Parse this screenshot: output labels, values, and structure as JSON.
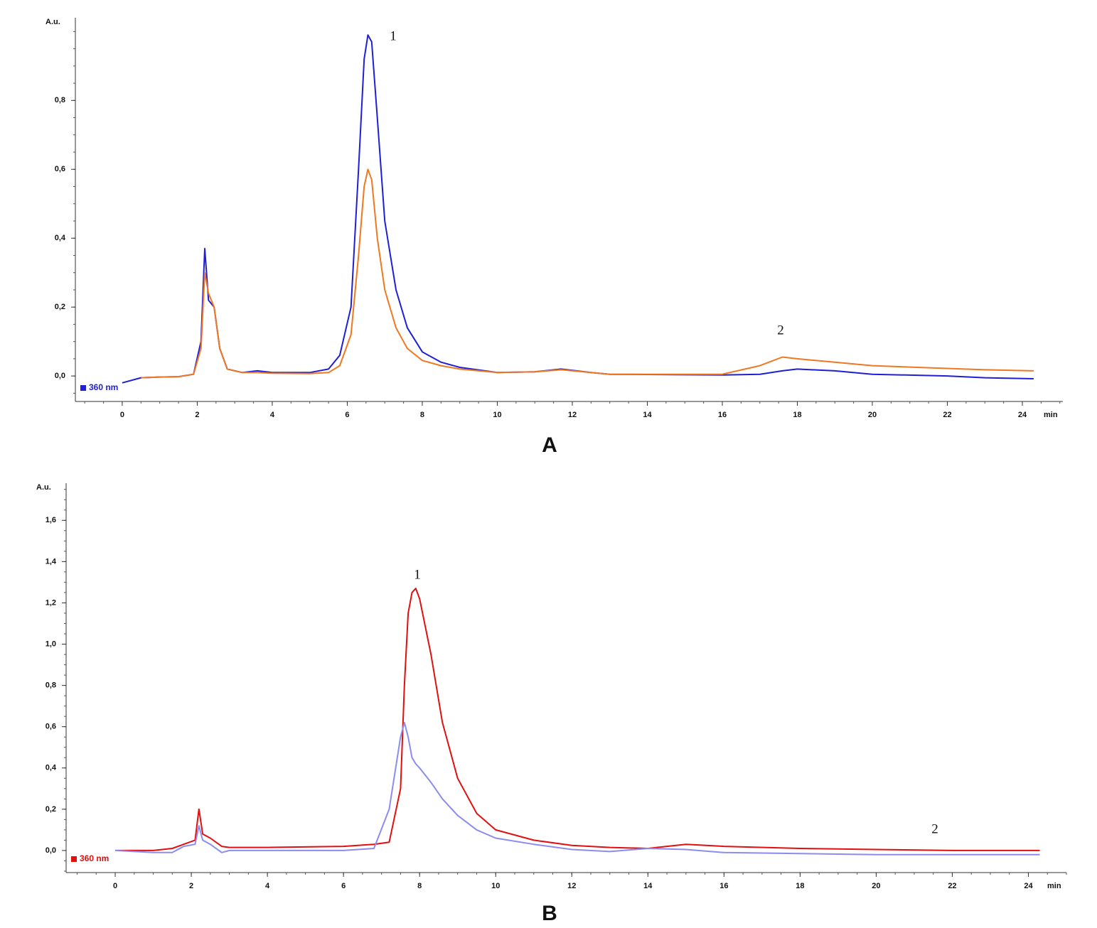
{
  "chart_data": [
    {
      "type": "line",
      "panel_label": "A",
      "y_label": "A.u.",
      "x_label": "min",
      "xlim": [
        -1.25,
        25.08
      ],
      "ylim": [
        -0.074,
        1.04
      ],
      "xticks": [
        0,
        2,
        4,
        6,
        8,
        10,
        12,
        14,
        16,
        18,
        20,
        22,
        24
      ],
      "yticks": [
        {
          "value": 0,
          "label": "0,0"
        },
        {
          "value": 0.2,
          "label": "0,2"
        },
        {
          "value": 0.4,
          "label": "0,4"
        },
        {
          "value": 0.6,
          "label": "0,6"
        },
        {
          "value": 0.8,
          "label": "0,8"
        }
      ],
      "legend": "bottom-left",
      "annotations": [
        "1",
        "2"
      ],
      "x": [
        0,
        0.5,
        1,
        1.5,
        1.9,
        2.1,
        2.2,
        2.3,
        2.45,
        2.6,
        2.8,
        3.2,
        3.6,
        4,
        5,
        5.5,
        5.8,
        6.1,
        6.3,
        6.45,
        6.55,
        6.65,
        6.8,
        7,
        7.3,
        7.6,
        8,
        8.5,
        9,
        10,
        11,
        11.7,
        12.5,
        13,
        16,
        17,
        17.6,
        18,
        19,
        20,
        22,
        23,
        24.3
      ],
      "series": [
        {
          "name": "360 nm",
          "color": "#1f1fd6",
          "values": [
            -0.02,
            -0.005,
            -0.003,
            -0.002,
            0.005,
            0.1,
            0.37,
            0.22,
            0.2,
            0.08,
            0.02,
            0.01,
            0.015,
            0.01,
            0.01,
            0.02,
            0.06,
            0.2,
            0.6,
            0.92,
            0.99,
            0.97,
            0.75,
            0.45,
            0.25,
            0.14,
            0.07,
            0.04,
            0.025,
            0.01,
            0.012,
            0.02,
            0.01,
            0.005,
            0.003,
            0.005,
            0.015,
            0.02,
            0.015,
            0.005,
            0.0,
            -0.005,
            -0.008
          ]
        },
        {
          "color": "#f07820",
          "values": [
            null,
            -0.005,
            -0.003,
            -0.002,
            0.005,
            0.08,
            0.3,
            0.24,
            0.2,
            0.08,
            0.02,
            0.01,
            0.01,
            0.008,
            0.007,
            0.01,
            0.03,
            0.12,
            0.35,
            0.55,
            0.6,
            0.57,
            0.4,
            0.25,
            0.14,
            0.08,
            0.045,
            0.03,
            0.02,
            0.01,
            0.012,
            0.018,
            0.01,
            0.005,
            0.005,
            0.03,
            0.055,
            0.05,
            0.04,
            0.03,
            0.022,
            0.018,
            0.015
          ]
        }
      ]
    },
    {
      "type": "line",
      "panel_label": "B",
      "y_label": "A.u.",
      "x_label": "min",
      "xlim": [
        -1.29,
        25.0
      ],
      "ylim": [
        -0.107,
        1.78
      ],
      "xticks": [
        0,
        2,
        4,
        6,
        8,
        10,
        12,
        14,
        16,
        18,
        20,
        22,
        24
      ],
      "yticks": [
        {
          "value": 0,
          "label": "0,0"
        },
        {
          "value": 0.2,
          "label": "0,2"
        },
        {
          "value": 0.4,
          "label": "0,4"
        },
        {
          "value": 0.6,
          "label": "0,6"
        },
        {
          "value": 0.8,
          "label": "0,8"
        },
        {
          "value": 1.0,
          "label": "1,0"
        },
        {
          "value": 1.2,
          "label": "1,2"
        },
        {
          "value": 1.4,
          "label": "1,4"
        },
        {
          "value": 1.6,
          "label": "1,6"
        }
      ],
      "legend": "bottom-left",
      "annotations": [
        "1",
        "2"
      ],
      "x": [
        0,
        1,
        1.5,
        1.8,
        2.1,
        2.2,
        2.3,
        2.5,
        2.8,
        3,
        4,
        6,
        6.8,
        7.2,
        7.5,
        7.6,
        7.7,
        7.8,
        7.9,
        8,
        8.3,
        8.6,
        9,
        9.5,
        10,
        11,
        12,
        13,
        14,
        15,
        16,
        18,
        20,
        22,
        24.3
      ],
      "series": [
        {
          "name": "360 nm",
          "color": "#e01010",
          "values": [
            0,
            0,
            0.01,
            0.03,
            0.05,
            0.2,
            0.08,
            0.06,
            0.02,
            0.015,
            0.015,
            0.02,
            0.03,
            0.04,
            0.3,
            0.8,
            1.15,
            1.25,
            1.27,
            1.22,
            0.95,
            0.62,
            0.35,
            0.18,
            0.1,
            0.05,
            0.025,
            0.015,
            0.01,
            0.03,
            0.02,
            0.01,
            0.005,
            0.0,
            0.0
          ]
        },
        {
          "color": "#8c8cf0",
          "values": [
            0,
            -0.01,
            -0.01,
            0.02,
            0.03,
            0.12,
            0.05,
            0.03,
            -0.01,
            0,
            0,
            0,
            0.01,
            0.2,
            0.55,
            0.62,
            0.55,
            0.45,
            0.42,
            0.4,
            0.33,
            0.25,
            0.17,
            0.1,
            0.06,
            0.03,
            0.005,
            -0.005,
            0.01,
            0.005,
            -0.01,
            -0.015,
            -0.02,
            -0.02,
            -0.02
          ]
        }
      ]
    }
  ]
}
